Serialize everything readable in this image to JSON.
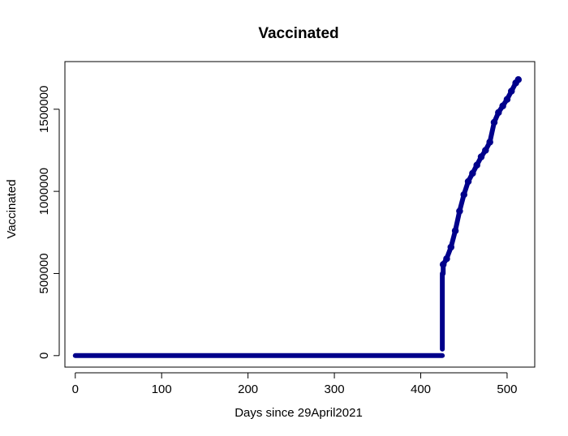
{
  "chart_data": {
    "type": "scatter",
    "title": "Vaccinated",
    "xlabel": "Days since 29April2021",
    "ylabel": "Vaccinated",
    "xlim": [
      -12,
      532
    ],
    "ylim": [
      -70000,
      1790000
    ],
    "x_ticks": [
      0,
      100,
      200,
      300,
      400,
      500
    ],
    "x_tick_labels": [
      "0",
      "100",
      "200",
      "300",
      "400",
      "500"
    ],
    "y_ticks": [
      0,
      500000,
      1000000,
      1500000
    ],
    "y_tick_labels": [
      "0",
      "500000",
      "1000000",
      "1500000"
    ],
    "grid": false,
    "series": [
      {
        "color": "#00008B",
        "marker": "circle",
        "segments": [
          {
            "x_start": 0,
            "x_end": 425,
            "y": 0
          },
          {
            "x_start": 425,
            "x_end": 425,
            "y_start": 40000,
            "y_end": 500000
          },
          {
            "x_start": 426,
            "x_end": 426,
            "y_start": 500000,
            "y_end": 550000
          }
        ],
        "points": [
          {
            "x": 426,
            "y": 555000
          },
          {
            "x": 430,
            "y": 590000
          },
          {
            "x": 435,
            "y": 660000
          },
          {
            "x": 440,
            "y": 760000
          },
          {
            "x": 445,
            "y": 880000
          },
          {
            "x": 450,
            "y": 980000
          },
          {
            "x": 455,
            "y": 1060000
          },
          {
            "x": 460,
            "y": 1110000
          },
          {
            "x": 465,
            "y": 1160000
          },
          {
            "x": 470,
            "y": 1210000
          },
          {
            "x": 475,
            "y": 1250000
          },
          {
            "x": 480,
            "y": 1300000
          },
          {
            "x": 485,
            "y": 1420000
          },
          {
            "x": 490,
            "y": 1480000
          },
          {
            "x": 495,
            "y": 1520000
          },
          {
            "x": 500,
            "y": 1560000
          },
          {
            "x": 505,
            "y": 1610000
          },
          {
            "x": 510,
            "y": 1660000
          },
          {
            "x": 513,
            "y": 1680000
          }
        ]
      }
    ]
  }
}
